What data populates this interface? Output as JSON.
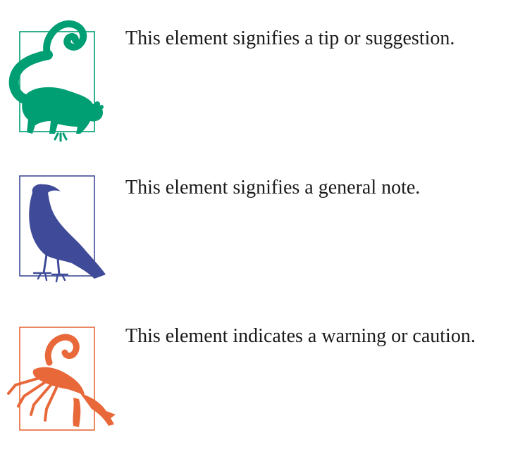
{
  "callouts": [
    {
      "type": "tip",
      "icon": "lemur-icon",
      "color": "#009e73",
      "text": "This element signifies a tip or suggestion."
    },
    {
      "type": "note",
      "icon": "crow-icon",
      "color": "#3f4b98",
      "text": "This element signifies a general note."
    },
    {
      "type": "warning",
      "icon": "scorpion-icon",
      "color": "#e8683a",
      "text": "This element indicates a warning or caution."
    }
  ]
}
